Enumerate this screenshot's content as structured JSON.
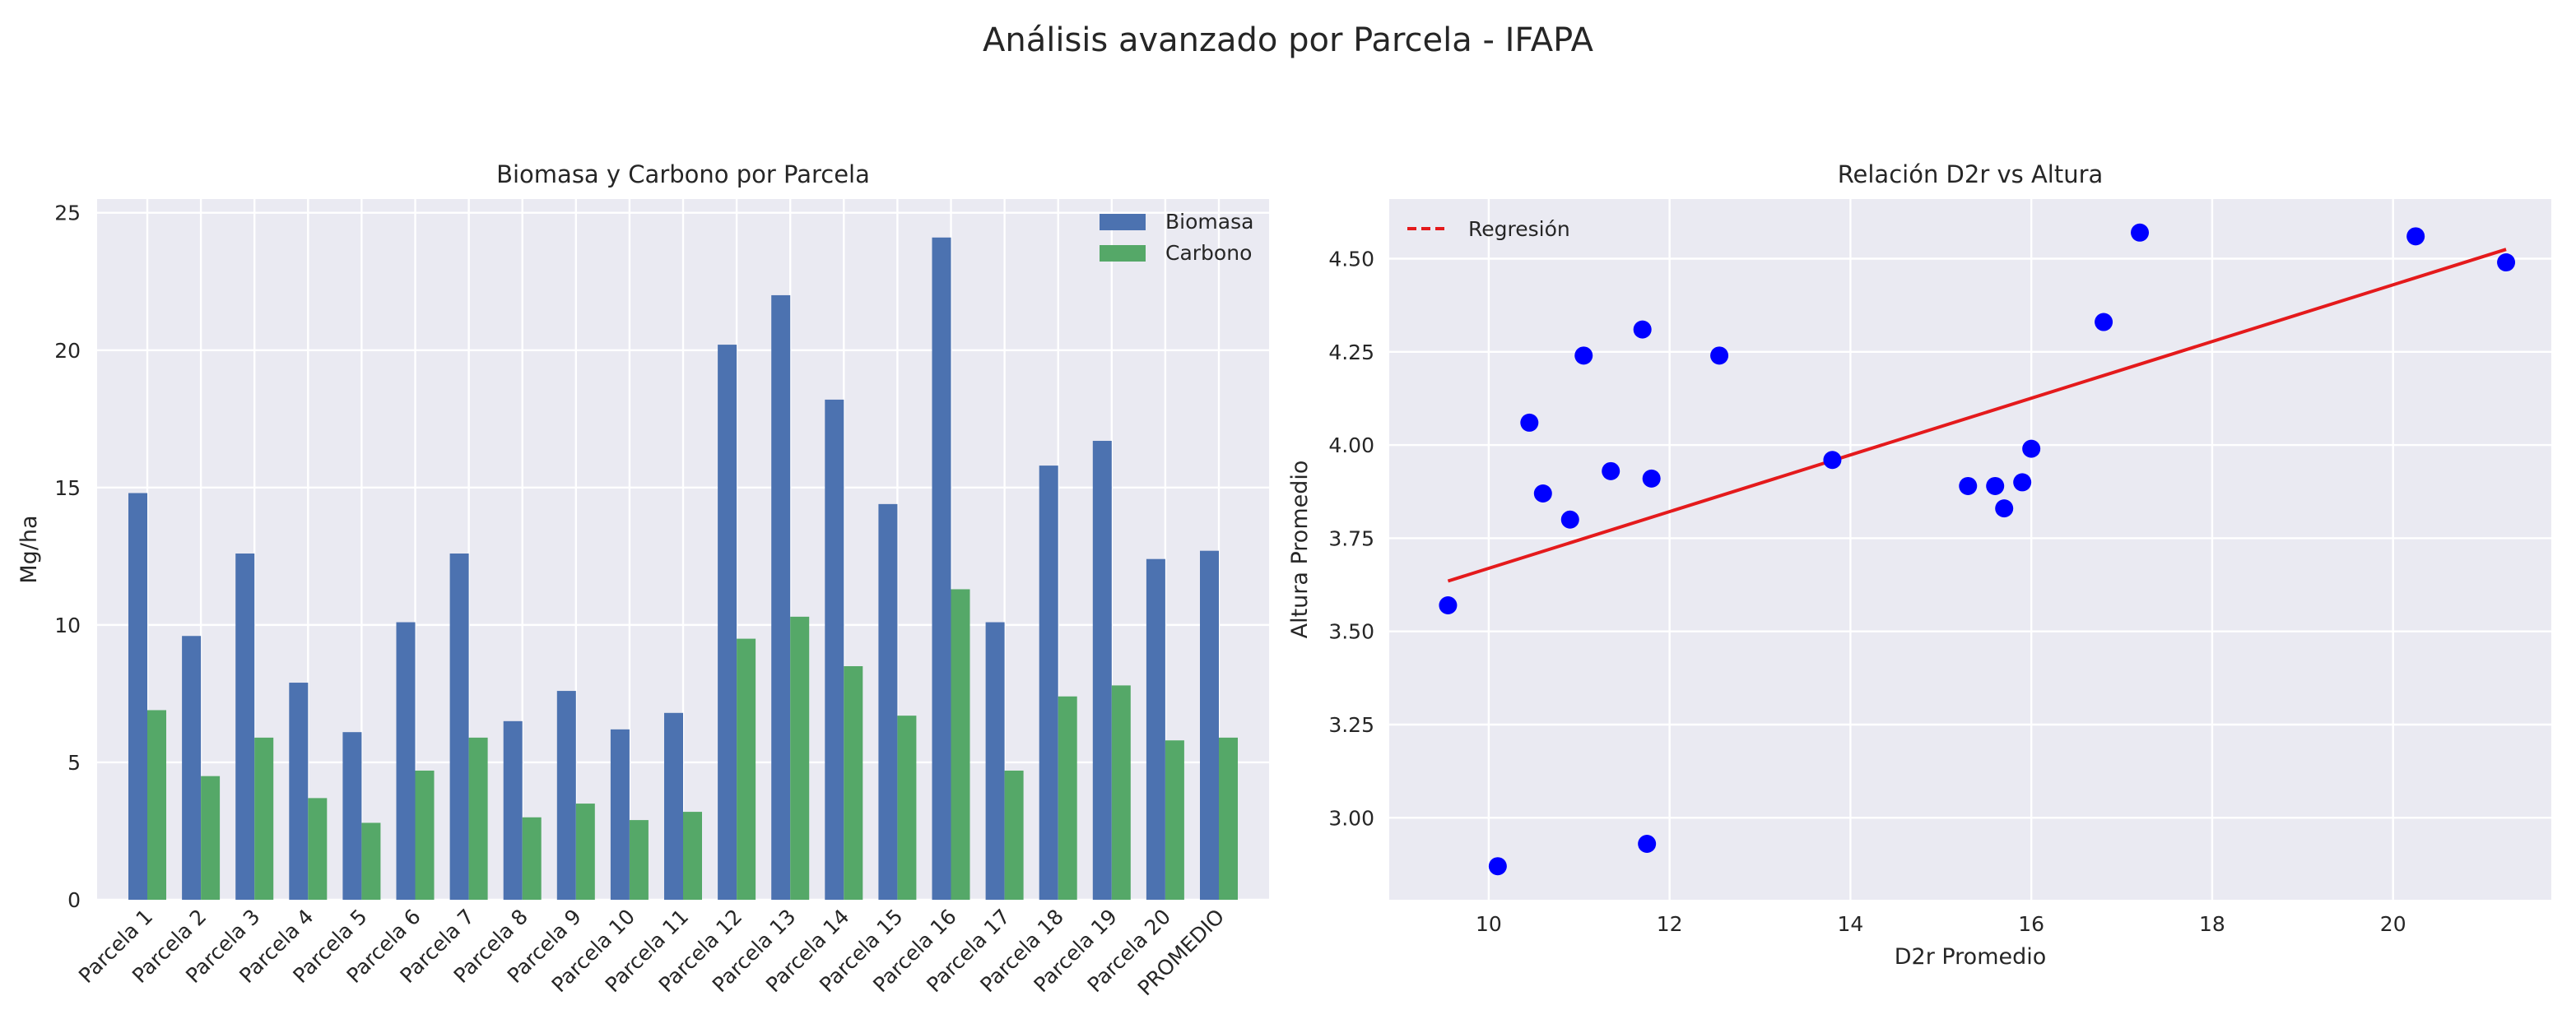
{
  "figure": {
    "suptitle": "Análisis avanzado por Parcela - IFAPA"
  },
  "colors": {
    "biomasa": "#4c72b0",
    "carbono": "#55a868",
    "points": "#0000ff",
    "regression": "#e41a1c",
    "plot_bg": "#eaeaf2"
  },
  "chart_data": [
    {
      "type": "bar",
      "title": "Biomasa y Carbono por Parcela",
      "xlabel": "",
      "ylabel": "Mg/ha",
      "ylim": [
        0,
        25.5
      ],
      "yticks": [
        0,
        5,
        10,
        15,
        20,
        25
      ],
      "grid": true,
      "legend_position": "top-right",
      "categories": [
        "Parcela 1",
        "Parcela 2",
        "Parcela 3",
        "Parcela 4",
        "Parcela 5",
        "Parcela 6",
        "Parcela 7",
        "Parcela 8",
        "Parcela 9",
        "Parcela 10",
        "Parcela 11",
        "Parcela 12",
        "Parcela 13",
        "Parcela 14",
        "Parcela 15",
        "Parcela 16",
        "Parcela 17",
        "Parcela 18",
        "Parcela 19",
        "Parcela 20",
        "PROMEDIO"
      ],
      "series": [
        {
          "name": "Biomasa",
          "values": [
            14.8,
            9.6,
            12.6,
            7.9,
            6.1,
            10.1,
            12.6,
            6.5,
            7.6,
            6.2,
            6.8,
            20.2,
            22.0,
            18.2,
            14.4,
            24.1,
            10.1,
            15.8,
            16.7,
            12.4,
            12.7
          ]
        },
        {
          "name": "Carbono",
          "values": [
            6.9,
            4.5,
            5.9,
            3.7,
            2.8,
            4.7,
            5.9,
            3.0,
            3.5,
            2.9,
            3.2,
            9.5,
            10.3,
            8.5,
            6.7,
            11.3,
            4.7,
            7.4,
            7.8,
            5.8,
            5.9
          ]
        }
      ]
    },
    {
      "type": "scatter",
      "title": "Relación D2r vs Altura",
      "xlabel": "D2r Promedio",
      "ylabel": "Altura Promedio",
      "xlim": [
        8.9,
        21.75
      ],
      "ylim": [
        2.78,
        4.66
      ],
      "xticks": [
        10,
        12,
        14,
        16,
        18,
        20
      ],
      "yticks": [
        3.0,
        3.25,
        3.5,
        3.75,
        4.0,
        4.25,
        4.5
      ],
      "ytick_labels": [
        "3.00",
        "3.25",
        "3.50",
        "3.75",
        "4.00",
        "4.25",
        "4.50"
      ],
      "grid": true,
      "legend_position": "top-left",
      "points": {
        "x": [
          9.55,
          10.1,
          10.45,
          10.6,
          10.9,
          11.05,
          11.35,
          11.7,
          11.75,
          11.8,
          12.55,
          13.8,
          15.3,
          15.6,
          15.7,
          15.9,
          16.0,
          16.8,
          17.2,
          20.25,
          21.25
        ],
        "y": [
          3.57,
          2.87,
          4.06,
          3.87,
          3.8,
          4.24,
          3.93,
          4.31,
          2.93,
          3.91,
          4.24,
          3.96,
          3.89,
          3.89,
          3.83,
          3.9,
          3.99,
          4.33,
          4.57,
          4.56,
          4.49
        ]
      },
      "regression": {
        "name": "Regresión",
        "x": [
          9.55,
          21.25
        ],
        "y": [
          3.635,
          4.525
        ]
      }
    }
  ]
}
